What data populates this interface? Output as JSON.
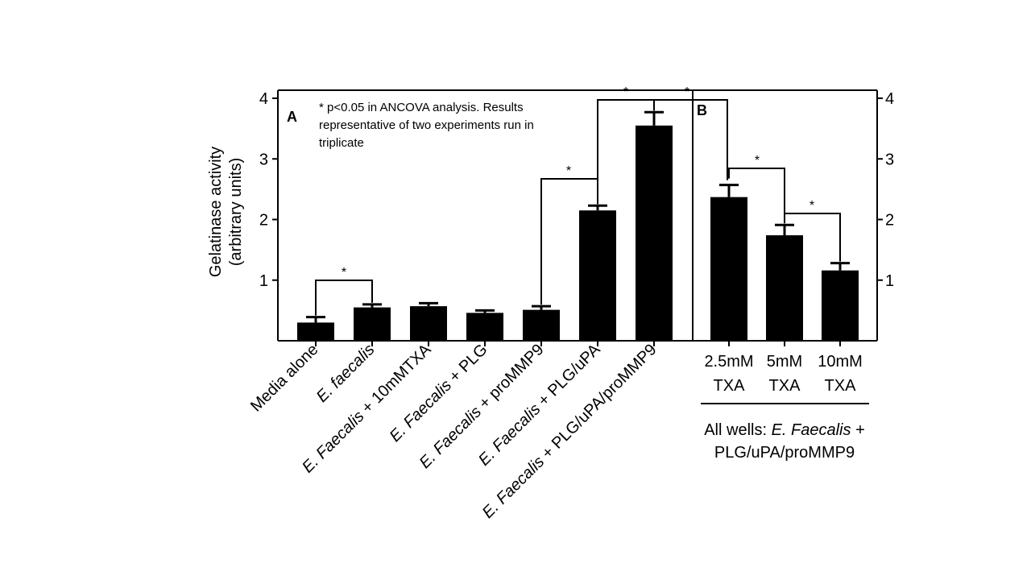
{
  "chart_data": [
    {
      "panel": "A",
      "type": "bar",
      "ylabel_line1": "Gelatinase activity",
      "ylabel_line2": "(arbitrary units)",
      "ylim": [
        0,
        4
      ],
      "yticks": [
        "1",
        "2",
        "3",
        "4"
      ],
      "grid": false,
      "note": [
        "* p<0.05 in ANCOVA analysis. Results",
        "representative of two experiments run in",
        "triplicate"
      ],
      "categories": [
        {
          "parts": [
            {
              "t": "Media alone",
              "i": false
            }
          ]
        },
        {
          "parts": [
            {
              "t": "E. faecalis",
              "i": true
            }
          ]
        },
        {
          "parts": [
            {
              "t": "E. Faecalis",
              "i": true
            },
            {
              "t": " + 10mMTXA",
              "i": false
            }
          ]
        },
        {
          "parts": [
            {
              "t": "E. Faecalis",
              "i": true
            },
            {
              "t": " + PLG",
              "i": false
            }
          ]
        },
        {
          "parts": [
            {
              "t": "E. Faecalis",
              "i": true
            },
            {
              "t": " + proMMP9",
              "i": false
            }
          ]
        },
        {
          "parts": [
            {
              "t": "E. Faecalis",
              "i": true
            },
            {
              "t": " + PLG/uPA",
              "i": false
            }
          ]
        },
        {
          "parts": [
            {
              "t": "E. Faecalis",
              "i": true
            },
            {
              "t": " + PLG/uPA/proMMP9",
              "i": false
            }
          ]
        }
      ],
      "values": [
        0.3,
        0.55,
        0.57,
        0.46,
        0.51,
        2.15,
        3.55
      ],
      "errors": [
        0.09,
        0.05,
        0.05,
        0.04,
        0.06,
        0.08,
        0.22
      ],
      "significance": [
        {
          "from": 0,
          "to": 1,
          "label": "*"
        },
        {
          "from": 4,
          "to": 5,
          "label": "*"
        },
        {
          "from": 5,
          "to": 6,
          "label": "*"
        }
      ]
    },
    {
      "panel": "B",
      "type": "bar",
      "ylim": [
        0,
        4
      ],
      "yticks": [
        "1",
        "2",
        "3",
        "4"
      ],
      "categories": [
        [
          "2.5mM",
          "TXA"
        ],
        [
          "5mM",
          "TXA"
        ],
        [
          "10mM",
          "TXA"
        ]
      ],
      "values": [
        2.37,
        1.74,
        1.16
      ],
      "errors": [
        0.2,
        0.17,
        0.12
      ],
      "group_label": [
        [
          {
            "t": "All wells: ",
            "i": false
          },
          {
            "t": "E. Faecalis",
            "i": true
          },
          {
            "t": " +",
            "i": false
          }
        ],
        [
          {
            "t": "PLG/uPA/proMMP9",
            "i": false
          }
        ]
      ],
      "significance": [
        {
          "from": 0,
          "to": 1,
          "label": "*"
        },
        {
          "from": 1,
          "to": 2,
          "label": "*"
        },
        {
          "from": "A6",
          "to": 0,
          "label": "*"
        }
      ]
    }
  ],
  "bar_color": "#000000"
}
